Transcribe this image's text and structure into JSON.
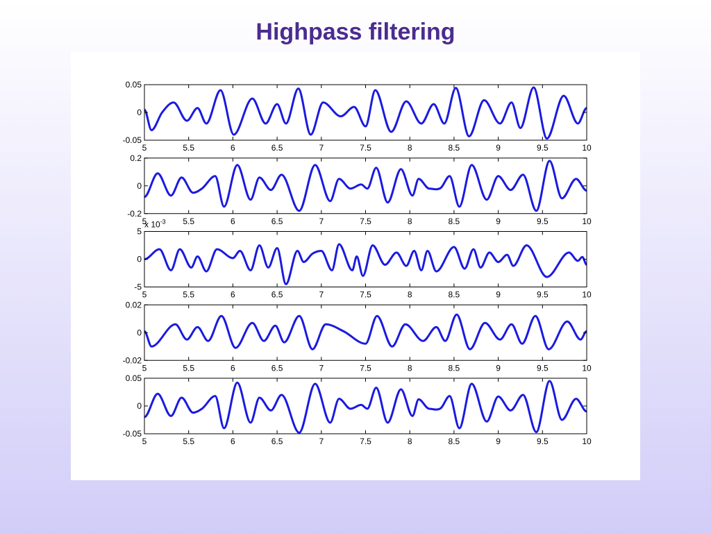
{
  "title": "Highpass filtering",
  "chart_data": [
    {
      "type": "line",
      "x": [
        5,
        5.08,
        5.2,
        5.33,
        5.48,
        5.6,
        5.7,
        5.86,
        6.01,
        6.22,
        6.37,
        6.5,
        6.6,
        6.74,
        6.88,
        7.02,
        7.22,
        7.37,
        7.5,
        7.61,
        7.79,
        7.96,
        8.13,
        8.27,
        8.39,
        8.52,
        8.67,
        8.84,
        9.02,
        9.15,
        9.25,
        9.4,
        9.55,
        9.74,
        9.9,
        10
      ],
      "series": [
        {
          "color": "#1a1ae0",
          "values": [
            0.005,
            -0.032,
            0.0,
            0.018,
            -0.015,
            0.008,
            -0.02,
            0.04,
            -0.04,
            0.025,
            -0.02,
            0.015,
            -0.02,
            0.043,
            -0.04,
            0.018,
            -0.007,
            0.01,
            -0.025,
            0.04,
            -0.035,
            0.02,
            -0.02,
            0.015,
            -0.02,
            0.044,
            -0.043,
            0.022,
            -0.02,
            0.018,
            -0.028,
            0.045,
            -0.047,
            0.03,
            -0.02,
            0.008
          ]
        }
      ],
      "xlim": [
        5,
        10
      ],
      "xticks": [
        5,
        5.5,
        6,
        6.5,
        7,
        7.5,
        8,
        8.5,
        9,
        9.5,
        10
      ],
      "ylim": [
        -0.05,
        0.05
      ],
      "yticks": [
        -0.05,
        0,
        0.05
      ]
    },
    {
      "type": "line",
      "x": [
        5,
        5.15,
        5.3,
        5.42,
        5.55,
        5.65,
        5.8,
        5.9,
        6.05,
        6.2,
        6.3,
        6.43,
        6.55,
        6.75,
        6.93,
        7.1,
        7.2,
        7.33,
        7.45,
        7.52,
        7.62,
        7.75,
        7.9,
        8.03,
        8.1,
        8.22,
        8.35,
        8.45,
        8.56,
        8.7,
        8.87,
        9.0,
        9.14,
        9.28,
        9.43,
        9.58,
        9.72,
        9.88,
        10
      ],
      "series": [
        {
          "color": "#1a1ae0",
          "values": [
            -0.08,
            0.09,
            -0.07,
            0.06,
            -0.05,
            -0.02,
            0.07,
            -0.15,
            0.15,
            -0.1,
            0.06,
            -0.03,
            0.08,
            -0.18,
            0.15,
            -0.11,
            0.05,
            -0.02,
            0.01,
            -0.02,
            0.13,
            -0.12,
            0.12,
            -0.07,
            0.05,
            -0.02,
            -0.015,
            0.07,
            -0.15,
            0.15,
            -0.1,
            0.07,
            -0.03,
            0.08,
            -0.18,
            0.18,
            -0.09,
            0.05,
            -0.035
          ]
        }
      ],
      "xlim": [
        5,
        10
      ],
      "xticks": [
        5,
        5.5,
        6,
        6.5,
        7,
        7.5,
        8,
        8.5,
        9,
        9.5,
        10
      ],
      "ylim": [
        -0.2,
        0.2
      ],
      "yticks": [
        -0.2,
        0,
        0.2
      ]
    },
    {
      "type": "line",
      "x": [
        5,
        5.17,
        5.3,
        5.4,
        5.53,
        5.6,
        5.7,
        5.82,
        6.0,
        6.08,
        6.2,
        6.3,
        6.4,
        6.5,
        6.6,
        6.73,
        6.8,
        6.9,
        7.0,
        7.12,
        7.2,
        7.35,
        7.4,
        7.47,
        7.58,
        7.72,
        7.85,
        7.96,
        8.05,
        8.13,
        8.2,
        8.3,
        8.5,
        8.62,
        8.72,
        8.8,
        8.9,
        9.0,
        9.1,
        9.17,
        9.32,
        9.55,
        9.8,
        9.9,
        9.95,
        10
      ],
      "series": [
        {
          "color": "#1a1ae0",
          "values": [
            0,
            1.8,
            -2,
            1.8,
            -1.5,
            0.5,
            -2.2,
            1.8,
            0.2,
            1.5,
            -2,
            2.5,
            -1.5,
            2,
            -4.5,
            1.5,
            -0.5,
            1,
            1.5,
            -2,
            2.7,
            -2,
            0.5,
            -3,
            2.5,
            -1,
            1.2,
            -1.2,
            1.5,
            -2,
            1.5,
            -2.2,
            2.2,
            -1.7,
            1.8,
            -1.5,
            1.2,
            -0.5,
            0.8,
            -1.2,
            2.5,
            -3.2,
            1.2,
            -0.3,
            0.4,
            -1
          ]
        }
      ],
      "xlim": [
        5,
        10
      ],
      "xticks": [
        5,
        5.5,
        6,
        6.5,
        7,
        7.5,
        8,
        8.5,
        9,
        9.5,
        10
      ],
      "ylim": [
        -5,
        5
      ],
      "yticks": [
        -5,
        0,
        5
      ],
      "axis_multiplier": "x 10",
      "axis_multiplier_exponent": "-3"
    },
    {
      "type": "line",
      "x": [
        5,
        5.08,
        5.35,
        5.48,
        5.6,
        5.72,
        5.87,
        6.03,
        6.22,
        6.35,
        6.48,
        6.58,
        6.75,
        6.9,
        7.05,
        7.25,
        7.5,
        7.63,
        7.8,
        7.95,
        8.15,
        8.3,
        8.4,
        8.53,
        8.68,
        8.85,
        9.02,
        9.15,
        9.27,
        9.42,
        9.57,
        9.78,
        9.93,
        10
      ],
      "series": [
        {
          "color": "#1a1ae0",
          "values": [
            0.001,
            -0.01,
            0.006,
            -0.005,
            0.004,
            -0.006,
            0.012,
            -0.011,
            0.007,
            -0.006,
            0.005,
            -0.007,
            0.012,
            -0.012,
            0.006,
            0.001,
            -0.008,
            0.012,
            -0.01,
            0.006,
            -0.006,
            0.004,
            -0.006,
            0.013,
            -0.012,
            0.007,
            -0.005,
            0.006,
            -0.008,
            0.012,
            -0.012,
            0.008,
            -0.005,
            0.001
          ]
        }
      ],
      "xlim": [
        5,
        10
      ],
      "xticks": [
        5,
        5.5,
        6,
        6.5,
        7,
        7.5,
        8,
        8.5,
        9,
        9.5,
        10
      ],
      "ylim": [
        -0.02,
        0.02
      ],
      "yticks": [
        -0.02,
        0,
        0.02
      ]
    },
    {
      "type": "line",
      "x": [
        5,
        5.15,
        5.3,
        5.42,
        5.55,
        5.65,
        5.8,
        5.9,
        6.05,
        6.2,
        6.3,
        6.43,
        6.55,
        6.75,
        6.93,
        7.1,
        7.2,
        7.33,
        7.45,
        7.52,
        7.62,
        7.75,
        7.9,
        8.03,
        8.1,
        8.22,
        8.35,
        8.45,
        8.56,
        8.7,
        8.87,
        9.0,
        9.14,
        9.28,
        9.43,
        9.58,
        9.72,
        9.88,
        10
      ],
      "series": [
        {
          "color": "#1a1ae0",
          "values": [
            -0.02,
            0.022,
            -0.018,
            0.015,
            -0.012,
            -0.005,
            0.018,
            -0.04,
            0.042,
            -0.03,
            0.015,
            -0.008,
            0.02,
            -0.048,
            0.04,
            -0.03,
            0.013,
            -0.005,
            0.002,
            -0.005,
            0.033,
            -0.03,
            0.03,
            -0.018,
            0.012,
            -0.005,
            -0.004,
            0.018,
            -0.04,
            0.04,
            -0.028,
            0.017,
            -0.008,
            0.02,
            -0.047,
            0.045,
            -0.025,
            0.013,
            -0.01
          ]
        }
      ],
      "xlim": [
        5,
        10
      ],
      "xticks": [
        5,
        5.5,
        6,
        6.5,
        7,
        7.5,
        8,
        8.5,
        9,
        9.5,
        10
      ],
      "ylim": [
        -0.05,
        0.05
      ],
      "yticks": [
        -0.05,
        0,
        0.05
      ]
    }
  ]
}
